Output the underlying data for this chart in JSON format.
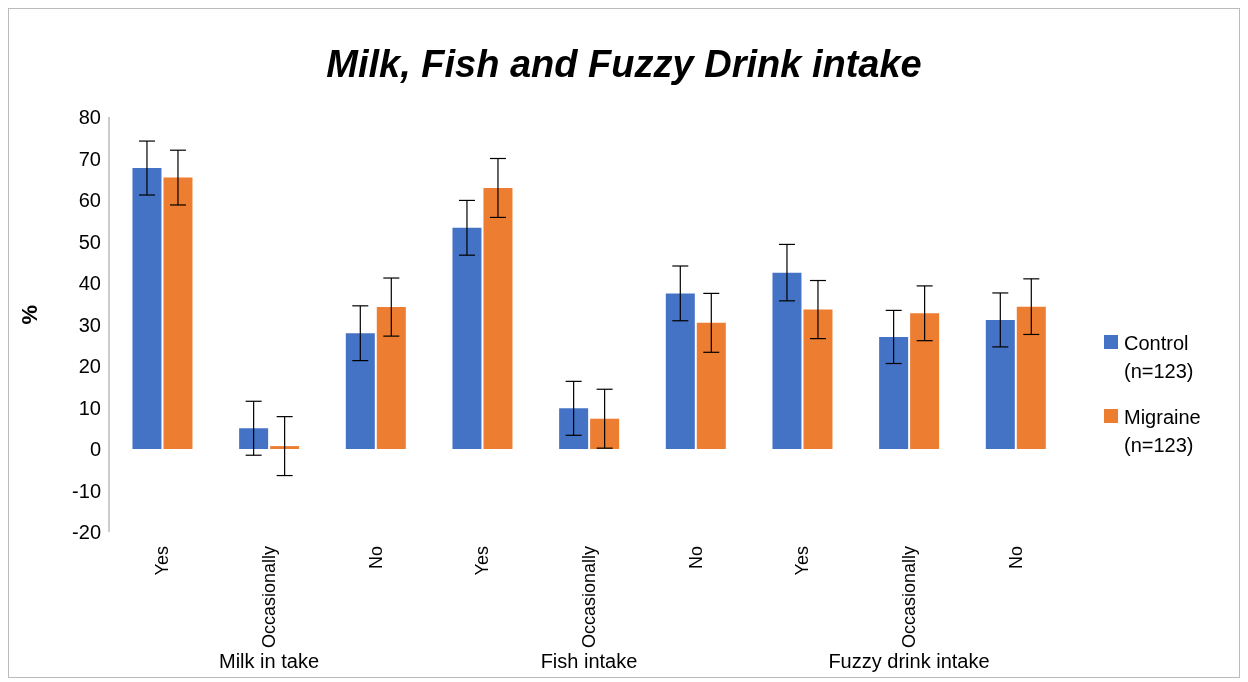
{
  "chart_data": {
    "type": "bar",
    "title": "Milk, Fish and Fuzzy Drink intake",
    "ylabel": "%",
    "categories": [
      "Yes",
      "Occasionally",
      "No",
      "Yes",
      "Occasionally",
      "No",
      "Yes",
      "Occasionally",
      "No"
    ],
    "series": [
      {
        "name": "Control (n=123)",
        "color": "#4472c4",
        "values": [
          67.7,
          5.0,
          27.9,
          53.3,
          9.8,
          37.5,
          42.5,
          27.0,
          31.1
        ],
        "errors": [
          6.5,
          6.5,
          6.6,
          6.6,
          6.5,
          6.6,
          6.8,
          6.4,
          6.5
        ]
      },
      {
        "name": "Migraine (n=123)",
        "color": "#ed7d31",
        "values": [
          65.4,
          0.7,
          34.2,
          62.9,
          7.3,
          30.4,
          33.6,
          32.7,
          34.3
        ],
        "errors": [
          6.6,
          7.1,
          7.0,
          7.1,
          7.1,
          7.1,
          7.0,
          6.6,
          6.7
        ]
      }
    ],
    "annotations": [
      "Milk in take",
      "Fish intake",
      "Fuzzy drink intake"
    ],
    "ylim": [
      -20,
      80
    ],
    "yticks": [
      -20,
      -10,
      0,
      10,
      20,
      30,
      40,
      50,
      60,
      70,
      80
    ],
    "legend": "right"
  }
}
